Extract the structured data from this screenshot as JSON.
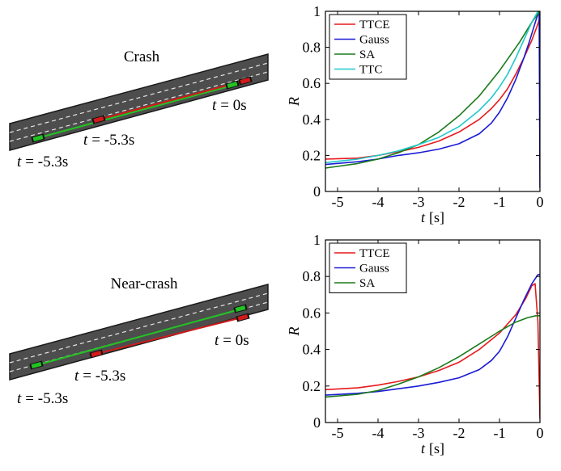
{
  "scenarios": [
    {
      "title": "Crash",
      "labels": [
        "t = 0s",
        "t = -5.3s",
        "t = -5.3s"
      ],
      "label_prefix": "t",
      "label_values": [
        "= 0s",
        "= -5.3s",
        "= -5.3s"
      ]
    },
    {
      "title": "Near-crash",
      "labels": [
        "t = 0s",
        "t = -5.3s",
        "t = -5.3s"
      ],
      "label_prefix": "t",
      "label_values": [
        "= 0s",
        "= -5.3s",
        "= -5.3s"
      ]
    }
  ],
  "colors": {
    "TTCE": "#e8191c",
    "Gauss": "#1a1ad6",
    "SA": "#1a7a1a",
    "TTC": "#20c8cc",
    "road": "#4d4d4d",
    "road_edge": "#1a1a1a",
    "lane_dash": "#e6e6e6",
    "car_green": "#22c322",
    "car_red": "#d21a1a"
  },
  "chart_data": [
    {
      "type": "line",
      "xlabel_var": "t",
      "xlabel_unit": "[s]",
      "ylabel": "R",
      "xlim": [
        -5.3,
        0
      ],
      "ylim": [
        0,
        1
      ],
      "xticks": [
        -5,
        -4,
        -3,
        -2,
        -1,
        0
      ],
      "xtick_labels": [
        "-5",
        "-4",
        "-3",
        "-2",
        "-1",
        "0"
      ],
      "yticks": [
        0,
        0.2,
        0.4,
        0.6,
        0.8,
        1
      ],
      "ytick_labels": [
        "0",
        "0.2",
        "0.4",
        "0.6",
        "0.8",
        "1"
      ],
      "legend_position": "top-left",
      "series": [
        {
          "name": "TTCE",
          "x": [
            -5.3,
            -4.5,
            -4.0,
            -3.5,
            -3.0,
            -2.5,
            -2.0,
            -1.5,
            -1.2,
            -1.0,
            -0.8,
            -0.6,
            -0.4,
            -0.2,
            -0.05,
            0.0
          ],
          "y": [
            0.18,
            0.185,
            0.2,
            0.22,
            0.245,
            0.28,
            0.33,
            0.4,
            0.46,
            0.51,
            0.57,
            0.65,
            0.74,
            0.84,
            0.93,
            0.97
          ]
        },
        {
          "name": "Gauss",
          "x": [
            -5.3,
            -4.5,
            -4.0,
            -3.5,
            -3.0,
            -2.5,
            -2.0,
            -1.5,
            -1.2,
            -1.0,
            -0.8,
            -0.6,
            -0.4,
            -0.25,
            -0.1,
            -0.02,
            0.0
          ],
          "y": [
            0.15,
            0.165,
            0.18,
            0.2,
            0.215,
            0.235,
            0.265,
            0.32,
            0.38,
            0.44,
            0.52,
            0.62,
            0.74,
            0.84,
            0.95,
            1.0,
            0.02
          ]
        },
        {
          "name": "SA",
          "x": [
            -5.3,
            -4.5,
            -4.0,
            -3.5,
            -3.0,
            -2.5,
            -2.0,
            -1.5,
            -1.0,
            -0.5,
            -0.2,
            0.0
          ],
          "y": [
            0.13,
            0.155,
            0.18,
            0.215,
            0.26,
            0.33,
            0.42,
            0.53,
            0.67,
            0.83,
            0.94,
            1.0
          ]
        },
        {
          "name": "TTC",
          "x": [
            -5.3,
            -4.5,
            -4.0,
            -3.5,
            -3.0,
            -2.5,
            -2.0,
            -1.5,
            -1.2,
            -1.0,
            -0.8,
            -0.6,
            -0.4,
            -0.2,
            -0.05
          ],
          "y": [
            0.16,
            0.18,
            0.2,
            0.225,
            0.26,
            0.3,
            0.36,
            0.45,
            0.52,
            0.58,
            0.65,
            0.74,
            0.84,
            0.94,
            1.0
          ]
        }
      ]
    },
    {
      "type": "line",
      "xlabel_var": "t",
      "xlabel_unit": "[s]",
      "ylabel": "R",
      "xlim": [
        -5.3,
        0
      ],
      "ylim": [
        0,
        1
      ],
      "xticks": [
        -5,
        -4,
        -3,
        -2,
        -1,
        0
      ],
      "xtick_labels": [
        "-5",
        "-4",
        "-3",
        "-2",
        "-1",
        "0"
      ],
      "yticks": [
        0,
        0.2,
        0.4,
        0.6,
        0.8,
        1
      ],
      "ytick_labels": [
        "0",
        "0.2",
        "0.4",
        "0.6",
        "0.8",
        "1"
      ],
      "legend_position": "top-left",
      "series": [
        {
          "name": "TTCE",
          "x": [
            -5.3,
            -4.5,
            -4.0,
            -3.5,
            -3.0,
            -2.5,
            -2.0,
            -1.5,
            -1.0,
            -0.6,
            -0.35,
            -0.2,
            -0.12,
            -0.05,
            0.0
          ],
          "y": [
            0.18,
            0.19,
            0.205,
            0.225,
            0.25,
            0.285,
            0.33,
            0.4,
            0.49,
            0.59,
            0.68,
            0.75,
            0.76,
            0.55,
            0.02
          ]
        },
        {
          "name": "Gauss",
          "x": [
            -5.3,
            -4.5,
            -4.0,
            -3.5,
            -3.0,
            -2.5,
            -2.0,
            -1.5,
            -1.2,
            -1.0,
            -0.8,
            -0.6,
            -0.4,
            -0.2,
            -0.05,
            0.0
          ],
          "y": [
            0.15,
            0.16,
            0.17,
            0.185,
            0.2,
            0.22,
            0.245,
            0.29,
            0.34,
            0.39,
            0.47,
            0.57,
            0.67,
            0.76,
            0.81,
            0.81
          ]
        },
        {
          "name": "SA",
          "x": [
            -5.3,
            -4.5,
            -4.0,
            -3.5,
            -3.0,
            -2.5,
            -2.0,
            -1.5,
            -1.0,
            -0.6,
            -0.3,
            -0.1,
            0.0
          ],
          "y": [
            0.14,
            0.155,
            0.175,
            0.21,
            0.25,
            0.3,
            0.36,
            0.43,
            0.5,
            0.55,
            0.575,
            0.585,
            0.585
          ]
        }
      ]
    }
  ]
}
